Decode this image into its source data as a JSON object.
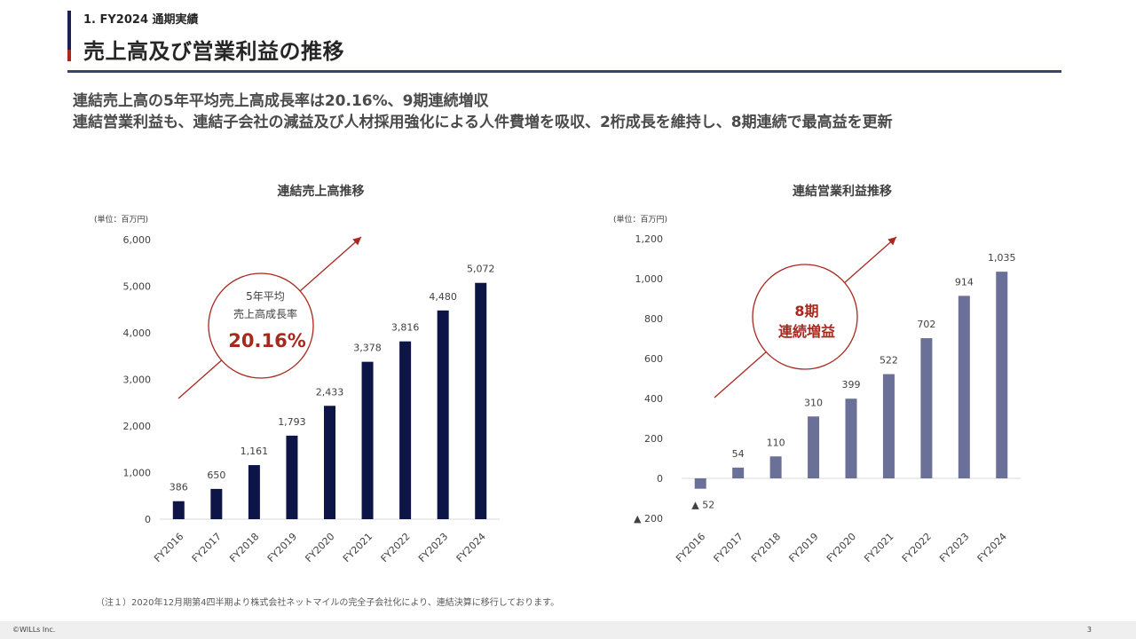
{
  "header": {
    "section": "1. FY2024 通期実績",
    "title": "売上高及び営業利益の推移"
  },
  "headline": {
    "line1": "連結売上高の5年平均売上高成長率は20.16%、9期連続増収",
    "line2": "連結営業利益も、連結子会社の減益及び人材採用強化による人件費増を吸収、2桁成長を維持し、8期連続で最高益を更新"
  },
  "colors": {
    "sales_bar": "#0d1547",
    "profit_bar": "#6b7098",
    "accent_red": "#a8281e",
    "title_navy": "#1b2150"
  },
  "chart_data": [
    {
      "type": "bar",
      "title": "連結売上高推移",
      "unit": "(単位：百万円)",
      "categories": [
        "FY2016",
        "FY2017",
        "FY2018",
        "FY2019",
        "FY2020",
        "FY2021",
        "FY2022",
        "FY2023",
        "FY2024"
      ],
      "values": [
        386,
        650,
        1161,
        1793,
        2433,
        3378,
        3816,
        4480,
        5072
      ],
      "value_labels": [
        "386",
        "650",
        "1,161",
        "1,793",
        "2,433",
        "3,378",
        "3,816",
        "4,480",
        "5,072"
      ],
      "ylim": [
        0,
        6000
      ],
      "yticks": [
        0,
        1000,
        2000,
        3000,
        4000,
        5000,
        6000
      ],
      "ytick_labels": [
        "0",
        "1,000",
        "2,000",
        "3,000",
        "4,000",
        "5,000",
        "6,000"
      ],
      "grid": false,
      "callout": {
        "line1": "5年平均",
        "line2": "売上高成長率",
        "value": "20.16%"
      }
    },
    {
      "type": "bar",
      "title": "連結営業利益推移",
      "unit": "(単位：百万円)",
      "categories": [
        "FY2016",
        "FY2017",
        "FY2018",
        "FY2019",
        "FY2020",
        "FY2021",
        "FY2022",
        "FY2023",
        "FY2024"
      ],
      "values": [
        -52,
        54,
        110,
        310,
        399,
        522,
        702,
        914,
        1035
      ],
      "value_labels": [
        "▲ 52",
        "54",
        "110",
        "310",
        "399",
        "522",
        "702",
        "914",
        "1,035"
      ],
      "ylim": [
        -200,
        1200
      ],
      "yticks": [
        -200,
        0,
        200,
        400,
        600,
        800,
        1000,
        1200
      ],
      "ytick_labels": [
        "▲ 200",
        "0",
        "200",
        "400",
        "600",
        "800",
        "1,000",
        "1,200"
      ],
      "grid": false,
      "callout": {
        "line1": "8期",
        "line2": "連続増益"
      }
    }
  ],
  "footnote": "（注１）2020年12月期第4四半期より株式会社ネットマイルの完全子会社化により、連結決算に移行しております。",
  "footer": {
    "copyright": "©WILLs Inc.",
    "page": "3"
  }
}
